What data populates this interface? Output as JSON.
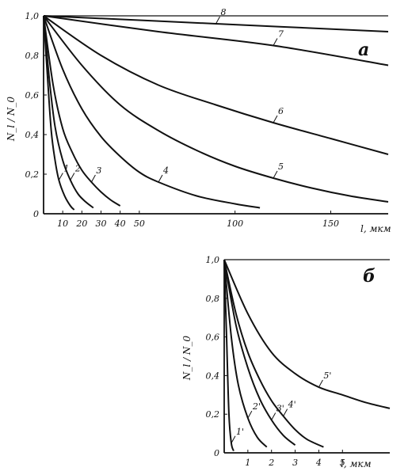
{
  "chart_data": [
    {
      "type": "line",
      "panel_label": "а",
      "ylabel": "N_l / N_0",
      "xlabel": "l, мкм",
      "xlim": [
        0,
        180
      ],
      "ylim": [
        0,
        1.0
      ],
      "x_ticks": [
        10,
        20,
        30,
        40,
        50,
        100,
        150
      ],
      "y_ticks": [
        0,
        0.2,
        0.4,
        0.6,
        0.8,
        1.0
      ],
      "y_tick_labels": [
        "0",
        "0,2",
        "0,4",
        "0,6",
        "0,8",
        "1,0"
      ],
      "series": [
        {
          "name": "1",
          "x": [
            0,
            2,
            4,
            6,
            8,
            11,
            14,
            16
          ],
          "y": [
            1.0,
            0.7,
            0.42,
            0.27,
            0.17,
            0.09,
            0.04,
            0.02
          ]
        },
        {
          "name": "2",
          "x": [
            0,
            3,
            6,
            10,
            14,
            18,
            22,
            26
          ],
          "y": [
            1.0,
            0.68,
            0.44,
            0.27,
            0.17,
            0.1,
            0.06,
            0.03
          ]
        },
        {
          "name": "3",
          "x": [
            0,
            5,
            10,
            15,
            20,
            25,
            30,
            35,
            40
          ],
          "y": [
            1.0,
            0.65,
            0.43,
            0.31,
            0.22,
            0.16,
            0.11,
            0.07,
            0.04
          ]
        },
        {
          "name": "4",
          "x": [
            0,
            10,
            20,
            30,
            40,
            50,
            60,
            80,
            100,
            113
          ],
          "y": [
            1.0,
            0.73,
            0.53,
            0.39,
            0.29,
            0.21,
            0.16,
            0.09,
            0.05,
            0.03
          ]
        },
        {
          "name": "5",
          "x": [
            0,
            20,
            40,
            60,
            80,
            100,
            120,
            140,
            160,
            180
          ],
          "y": [
            1.0,
            0.75,
            0.55,
            0.42,
            0.32,
            0.24,
            0.18,
            0.13,
            0.09,
            0.06
          ]
        },
        {
          "name": "6",
          "x": [
            0,
            30,
            60,
            90,
            120,
            150,
            180
          ],
          "y": [
            1.0,
            0.8,
            0.65,
            0.55,
            0.46,
            0.38,
            0.3
          ]
        },
        {
          "name": "7",
          "x": [
            0,
            60,
            120,
            180
          ],
          "y": [
            1.0,
            0.92,
            0.85,
            0.75
          ]
        },
        {
          "name": "8",
          "x": [
            0,
            90,
            180
          ],
          "y": [
            1.0,
            0.96,
            0.92
          ]
        }
      ],
      "curve_labels": [
        "1",
        "2",
        "3",
        "4",
        "5",
        "6",
        "7",
        "8"
      ]
    },
    {
      "type": "line",
      "panel_label": "б",
      "ylabel": "N_l / N_0",
      "xlabel": "l, мкм",
      "xlim": [
        0,
        7
      ],
      "ylim": [
        0,
        1.0
      ],
      "x_ticks": [
        1,
        2,
        3,
        4,
        5
      ],
      "y_ticks": [
        0,
        0.2,
        0.4,
        0.6,
        0.8,
        1.0
      ],
      "y_tick_labels": [
        "0",
        "0,2",
        "0,4",
        "0,6",
        "0,8",
        "1,0"
      ],
      "series": [
        {
          "name": "1'",
          "x": [
            0,
            0.1,
            0.2,
            0.3,
            0.4
          ],
          "y": [
            1.0,
            0.6,
            0.2,
            0.05,
            0.01
          ]
        },
        {
          "name": "2'",
          "x": [
            0,
            0.3,
            0.6,
            1.0,
            1.4,
            1.8
          ],
          "y": [
            1.0,
            0.6,
            0.35,
            0.18,
            0.08,
            0.03
          ]
        },
        {
          "name": "3'",
          "x": [
            0,
            0.5,
            1.0,
            1.5,
            2.0,
            2.5,
            3.0
          ],
          "y": [
            1.0,
            0.66,
            0.44,
            0.28,
            0.17,
            0.09,
            0.04
          ]
        },
        {
          "name": "4'",
          "x": [
            0,
            0.5,
            1.0,
            1.5,
            2.0,
            2.5,
            3.0,
            3.5,
            4.2
          ],
          "y": [
            1.0,
            0.72,
            0.52,
            0.38,
            0.27,
            0.19,
            0.12,
            0.07,
            0.03
          ]
        },
        {
          "name": "5'",
          "x": [
            0,
            1,
            2,
            3,
            4,
            5,
            6,
            7
          ],
          "y": [
            1.0,
            0.72,
            0.52,
            0.41,
            0.34,
            0.3,
            0.26,
            0.23
          ]
        }
      ],
      "curve_labels": [
        "1'",
        "2'",
        "3'",
        "4'",
        "5'"
      ]
    }
  ]
}
